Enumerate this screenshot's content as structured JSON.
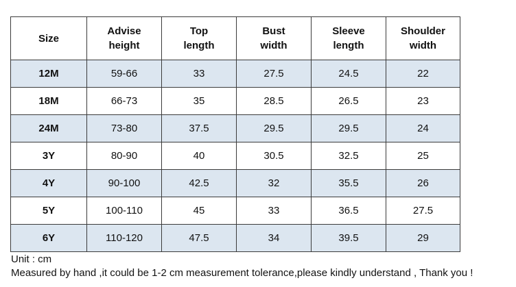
{
  "table": {
    "headers": [
      [
        "Size"
      ],
      [
        "Advise",
        "height"
      ],
      [
        "Top",
        "length"
      ],
      [
        "Bust",
        "width"
      ],
      [
        "Sleeve",
        "length"
      ],
      [
        "Shoulder",
        "width"
      ]
    ],
    "rows": [
      [
        "12M",
        "59-66",
        "33",
        "27.5",
        "24.5",
        "22"
      ],
      [
        "18M",
        "66-73",
        "35",
        "28.5",
        "26.5",
        "23"
      ],
      [
        "24M",
        "73-80",
        "37.5",
        "29.5",
        "29.5",
        "24"
      ],
      [
        "3Y",
        "80-90",
        "40",
        "30.5",
        "32.5",
        "25"
      ],
      [
        "4Y",
        "90-100",
        "42.5",
        "32",
        "35.5",
        "26"
      ],
      [
        "5Y",
        "100-110",
        "45",
        "33",
        "36.5",
        "27.5"
      ],
      [
        "6Y",
        "110-120",
        "47.5",
        "34",
        "39.5",
        "29"
      ]
    ],
    "shaded_row_color": "#dce6f0"
  },
  "notes": {
    "unit": "Unit : cm",
    "tolerance": "Measured by hand ,it could be 1-2 cm measurement tolerance,please kindly understand , Thank you !"
  }
}
